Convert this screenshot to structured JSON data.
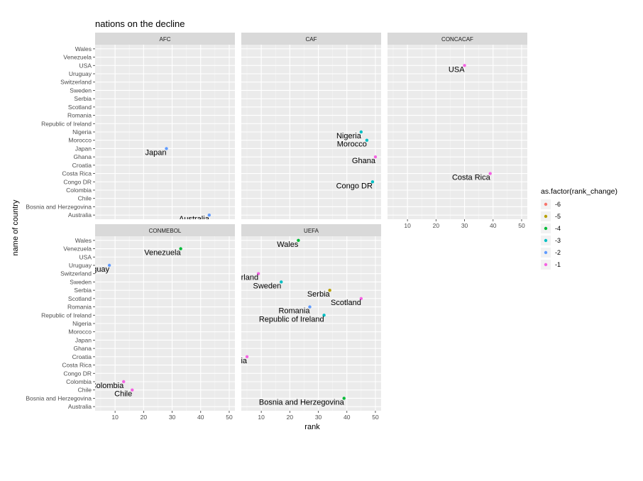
{
  "chart_data": {
    "type": "scatter",
    "title": "nations on the decline",
    "xlabel": "rank",
    "ylabel": "name of country",
    "xlim": [
      3,
      52
    ],
    "xticks": [
      10,
      20,
      30,
      40,
      50
    ],
    "countries": [
      "Wales",
      "Venezuela",
      "USA",
      "Uruguay",
      "Switzerland",
      "Sweden",
      "Serbia",
      "Scotland",
      "Romania",
      "Republic of Ireland",
      "Nigeria",
      "Morocco",
      "Japan",
      "Ghana",
      "Croatia",
      "Costa Rica",
      "Congo DR",
      "Colombia",
      "Chile",
      "Bosnia and Herzegovina",
      "Australia"
    ],
    "grid": true,
    "legend": {
      "title": "as.factor(rank_change)",
      "position": "right",
      "entries": [
        {
          "label": "-6",
          "color": "#F8766D"
        },
        {
          "label": "-5",
          "color": "#B79F00"
        },
        {
          "label": "-4",
          "color": "#00BA38"
        },
        {
          "label": "-3",
          "color": "#00BFC4"
        },
        {
          "label": "-2",
          "color": "#619CFF"
        },
        {
          "label": "-1",
          "color": "#F564E3"
        }
      ]
    },
    "panels": [
      {
        "name": "AFC",
        "points": [
          {
            "country": "Japan",
            "rank": 28,
            "change": "-2"
          },
          {
            "country": "Australia",
            "rank": 43,
            "change": "-2"
          }
        ]
      },
      {
        "name": "CAF",
        "points": [
          {
            "country": "Nigeria",
            "rank": 45,
            "change": "-3"
          },
          {
            "country": "Morocco",
            "rank": 47,
            "change": "-3"
          },
          {
            "country": "Ghana",
            "rank": 50,
            "change": "-1"
          },
          {
            "country": "Congo DR",
            "rank": 49,
            "change": "-3"
          }
        ]
      },
      {
        "name": "CONCACAF",
        "points": [
          {
            "country": "USA",
            "rank": 30,
            "change": "-1"
          },
          {
            "country": "Costa Rica",
            "rank": 39,
            "change": "-1"
          }
        ]
      },
      {
        "name": "CONMEBOL",
        "points": [
          {
            "country": "Venezuela",
            "rank": 33,
            "change": "-4"
          },
          {
            "country": "Uruguay",
            "rank": 8,
            "change": "-2"
          },
          {
            "country": "Colombia",
            "rank": 13,
            "change": "-1"
          },
          {
            "country": "Chile",
            "rank": 16,
            "change": "-1"
          }
        ]
      },
      {
        "name": "UEFA",
        "points": [
          {
            "country": "Wales",
            "rank": 23,
            "change": "-4"
          },
          {
            "country": "Switzerland",
            "rank": 9,
            "change": "-1"
          },
          {
            "country": "Sweden",
            "rank": 17,
            "change": "-3"
          },
          {
            "country": "Serbia",
            "rank": 34,
            "change": "-5"
          },
          {
            "country": "Scotland",
            "rank": 45,
            "change": "-1"
          },
          {
            "country": "Romania",
            "rank": 27,
            "change": "-2"
          },
          {
            "country": "Republic of Ireland",
            "rank": 32,
            "change": "-3"
          },
          {
            "country": "Croatia",
            "rank": 5,
            "change": "-1"
          },
          {
            "country": "Bosnia and Herzegovina",
            "rank": 39,
            "change": "-4"
          }
        ]
      }
    ]
  }
}
